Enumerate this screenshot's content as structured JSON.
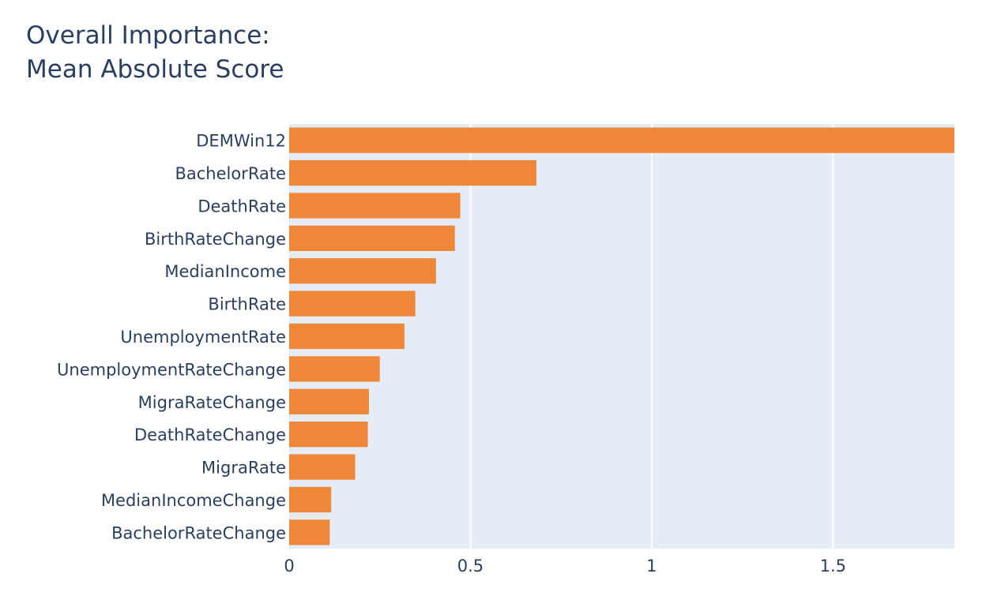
{
  "chart_data": {
    "type": "bar",
    "orientation": "horizontal",
    "title_lines": [
      "Overall Importance:",
      "Mean Absolute Score"
    ],
    "xlabel": "",
    "ylabel": "",
    "categories": [
      "DEMWin12",
      "BachelorRate",
      "DeathRate",
      "BirthRateChange",
      "MedianIncome",
      "BirthRate",
      "UnemploymentRate",
      "UnemploymentRateChange",
      "MigraRateChange",
      "DeathRateChange",
      "MigraRate",
      "MedianIncomeChange",
      "BachelorRateChange"
    ],
    "values": [
      1.835,
      0.682,
      0.472,
      0.457,
      0.405,
      0.348,
      0.318,
      0.25,
      0.22,
      0.217,
      0.182,
      0.116,
      0.112
    ],
    "xlim": [
      0,
      1.835
    ],
    "xticks": [
      {
        "value": 0,
        "label": "0"
      },
      {
        "value": 0.5,
        "label": "0.5"
      },
      {
        "value": 1,
        "label": "1"
      },
      {
        "value": 1.5,
        "label": "1.5"
      }
    ],
    "grid": true,
    "legend": "none",
    "colors": {
      "bar": "#ef8738",
      "plot_background": "#e5ecf6",
      "gridline": "#ffffff",
      "text": "#2a3f5f"
    }
  }
}
